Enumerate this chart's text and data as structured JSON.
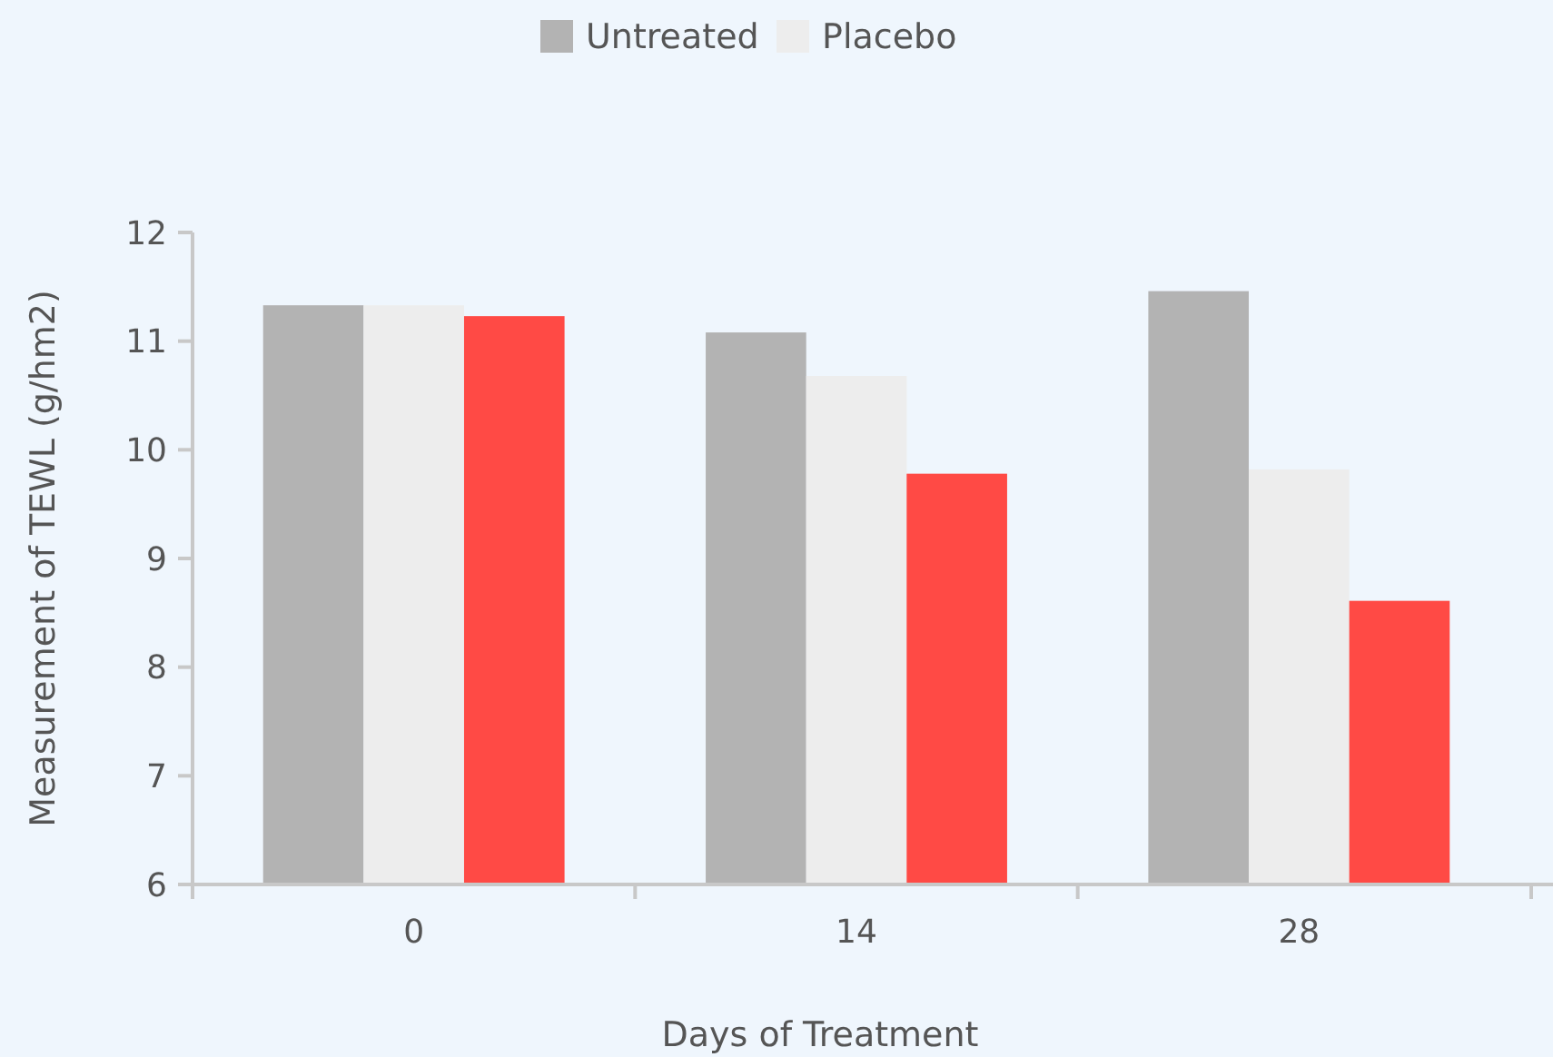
{
  "chart_data": {
    "type": "bar",
    "xlabel": "Days of Treatment",
    "ylabel": "Measurement of  TEWL (g/hm2)",
    "categories": [
      "0",
      "14",
      "28"
    ],
    "series": [
      {
        "name": "Untreated",
        "color": "#b3b3b3",
        "values": [
          11.33,
          11.08,
          11.46
        ]
      },
      {
        "name": "Placebo",
        "color": "#ededed",
        "values": [
          11.33,
          10.68,
          9.82
        ]
      },
      {
        "color": "#ff4a45",
        "values": [
          11.23,
          9.78,
          8.61
        ]
      }
    ],
    "ylim": [
      6,
      12
    ],
    "yticks": [
      6,
      7,
      8,
      9,
      10,
      11,
      12
    ],
    "grid": false,
    "legend": "top"
  }
}
